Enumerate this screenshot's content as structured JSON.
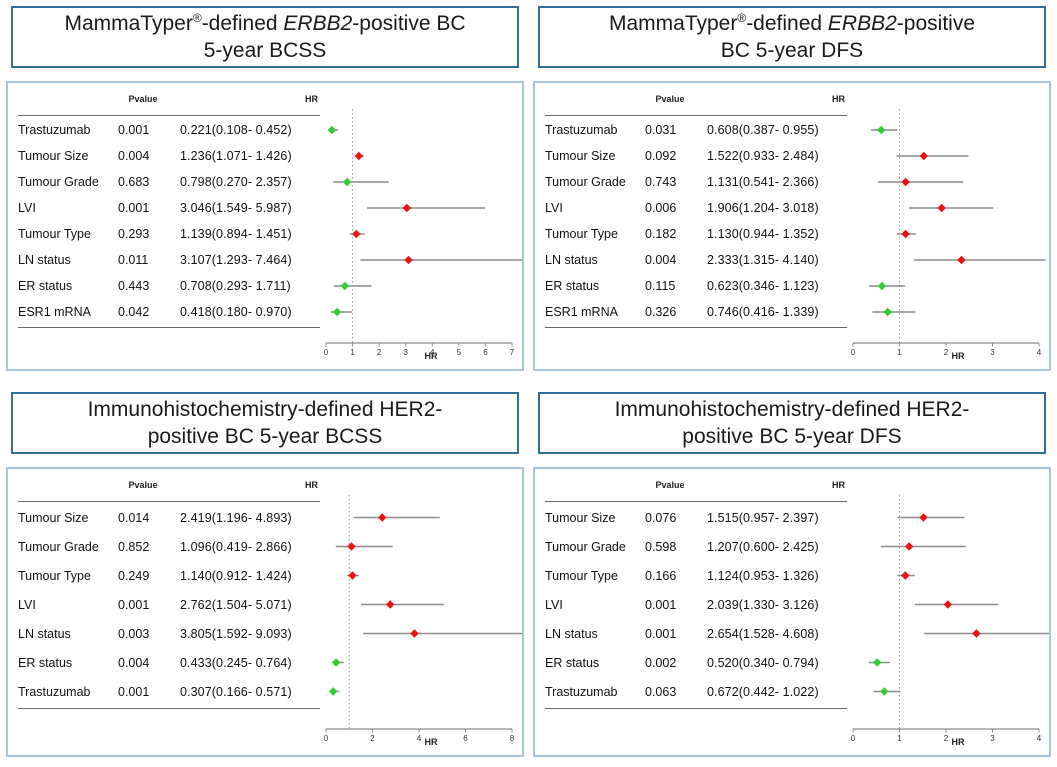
{
  "colors": {
    "red_marker": "#ee1111",
    "green_marker": "#33cc33",
    "error_bar": "#8c8c8c",
    "reference_line": "#999999",
    "axis_line": "#8c8c8c",
    "tick_text": "#333333",
    "title_border": "#2f6e96",
    "panel_border": "#a9c6da"
  },
  "table_headers": {
    "pvalue": "Pvalue",
    "hr": "HR"
  },
  "chart_data": [
    {
      "type": "scatter",
      "subtype": "forest-plot",
      "title": "MammaTyper®-defined ERBB2-positive BC 5-year BCSS",
      "title_segments": [
        {
          "text": "MammaTyper"
        },
        {
          "text": "®",
          "sup": true
        },
        {
          "text": "-defined "
        },
        {
          "text": "ERBB2",
          "italic": true
        },
        {
          "text": "-positive BC"
        },
        {
          "break": true
        },
        {
          "text": "5-year BCSS"
        }
      ],
      "xlabel": "HR",
      "xlim": [
        0,
        7
      ],
      "xticks": [
        0,
        1,
        2,
        3,
        4,
        5,
        6,
        7
      ],
      "refline": 1,
      "rows": [
        {
          "label": "Trastuzumab",
          "pvalue": "0.001",
          "hr_ci": "0.221(0.108- 0.452)",
          "hr": 0.221,
          "ci_low": 0.108,
          "ci_high": 0.452
        },
        {
          "label": "Tumour Size",
          "pvalue": "0.004",
          "hr_ci": "1.236(1.071- 1.426)",
          "hr": 1.236,
          "ci_low": 1.071,
          "ci_high": 1.426
        },
        {
          "label": "Tumour Grade",
          "pvalue": "0.683",
          "hr_ci": "0.798(0.270- 2.357)",
          "hr": 0.798,
          "ci_low": 0.27,
          "ci_high": 2.357
        },
        {
          "label": "LVI",
          "pvalue": "0.001",
          "hr_ci": "3.046(1.549- 5.987)",
          "hr": 3.046,
          "ci_low": 1.549,
          "ci_high": 5.987
        },
        {
          "label": "Tumour Type",
          "pvalue": "0.293",
          "hr_ci": "1.139(0.894- 1.451)",
          "hr": 1.139,
          "ci_low": 0.894,
          "ci_high": 1.451
        },
        {
          "label": "LN status",
          "pvalue": "0.011",
          "hr_ci": "3.107(1.293- 7.464)",
          "hr": 3.107,
          "ci_low": 1.293,
          "ci_high": 7.464
        },
        {
          "label": "ER status",
          "pvalue": "0.443",
          "hr_ci": "0.708(0.293- 1.711)",
          "hr": 0.708,
          "ci_low": 0.293,
          "ci_high": 1.711
        },
        {
          "label": "ESR1 mRNA",
          "pvalue": "0.042",
          "hr_ci": "0.418(0.180- 0.970)",
          "hr": 0.418,
          "ci_low": 0.18,
          "ci_high": 0.97
        }
      ]
    },
    {
      "type": "scatter",
      "subtype": "forest-plot",
      "title": "MammaTyper®-defined ERBB2-positive BC 5-year DFS",
      "title_segments": [
        {
          "text": "MammaTyper"
        },
        {
          "text": "®",
          "sup": true
        },
        {
          "text": "-defined "
        },
        {
          "text": "ERBB2",
          "italic": true
        },
        {
          "text": "-positive"
        },
        {
          "break": true
        },
        {
          "text": "BC 5-year DFS"
        }
      ],
      "xlabel": "HR",
      "xlim": [
        0,
        4
      ],
      "xticks": [
        0,
        1,
        2,
        3,
        4
      ],
      "refline": 1,
      "rows": [
        {
          "label": "Trastuzumab",
          "pvalue": "0.031",
          "hr_ci": "0.608(0.387- 0.955)",
          "hr": 0.608,
          "ci_low": 0.387,
          "ci_high": 0.955
        },
        {
          "label": "Tumour Size",
          "pvalue": "0.092",
          "hr_ci": "1.522(0.933- 2.484)",
          "hr": 1.522,
          "ci_low": 0.933,
          "ci_high": 2.484
        },
        {
          "label": "Tumour Grade",
          "pvalue": "0.743",
          "hr_ci": "1.131(0.541- 2.366)",
          "hr": 1.131,
          "ci_low": 0.541,
          "ci_high": 2.366
        },
        {
          "label": "LVI",
          "pvalue": "0.006",
          "hr_ci": "1.906(1.204- 3.018)",
          "hr": 1.906,
          "ci_low": 1.204,
          "ci_high": 3.018
        },
        {
          "label": "Tumour Type",
          "pvalue": "0.182",
          "hr_ci": "1.130(0.944- 1.352)",
          "hr": 1.13,
          "ci_low": 0.944,
          "ci_high": 1.352
        },
        {
          "label": "LN status",
          "pvalue": "0.004",
          "hr_ci": "2.333(1.315- 4.140)",
          "hr": 2.333,
          "ci_low": 1.315,
          "ci_high": 4.14
        },
        {
          "label": "ER status",
          "pvalue": "0.115",
          "hr_ci": "0.623(0.346- 1.123)",
          "hr": 0.623,
          "ci_low": 0.346,
          "ci_high": 1.123
        },
        {
          "label": "ESR1 mRNA",
          "pvalue": "0.326",
          "hr_ci": "0.746(0.416- 1.339)",
          "hr": 0.746,
          "ci_low": 0.416,
          "ci_high": 1.339
        }
      ]
    },
    {
      "type": "scatter",
      "subtype": "forest-plot",
      "title": "Immunohistochemistry-defined HER2-positive BC 5-year BCSS",
      "title_segments": [
        {
          "text": "Immunohistochemistry-defined HER2-"
        },
        {
          "break": true
        },
        {
          "text": "positive BC 5-year BCSS"
        }
      ],
      "xlabel": "HR",
      "xlim": [
        0,
        8
      ],
      "xticks": [
        0,
        2,
        4,
        6,
        8
      ],
      "refline": 1,
      "rows": [
        {
          "label": "Tumour Size",
          "pvalue": "0.014",
          "hr_ci": "2.419(1.196- 4.893)",
          "hr": 2.419,
          "ci_low": 1.196,
          "ci_high": 4.893
        },
        {
          "label": "Tumour Grade",
          "pvalue": "0.852",
          "hr_ci": "1.096(0.419- 2.866)",
          "hr": 1.096,
          "ci_low": 0.419,
          "ci_high": 2.866
        },
        {
          "label": "Tumour Type",
          "pvalue": "0.249",
          "hr_ci": "1.140(0.912- 1.424)",
          "hr": 1.14,
          "ci_low": 0.912,
          "ci_high": 1.424
        },
        {
          "label": "LVI",
          "pvalue": "0.001",
          "hr_ci": "2.762(1.504- 5.071)",
          "hr": 2.762,
          "ci_low": 1.504,
          "ci_high": 5.071
        },
        {
          "label": "LN status",
          "pvalue": "0.003",
          "hr_ci": "3.805(1.592- 9.093)",
          "hr": 3.805,
          "ci_low": 1.592,
          "ci_high": 9.093
        },
        {
          "label": "ER status",
          "pvalue": "0.004",
          "hr_ci": "0.433(0.245- 0.764)",
          "hr": 0.433,
          "ci_low": 0.245,
          "ci_high": 0.764
        },
        {
          "label": "Trastuzumab",
          "pvalue": "0.001",
          "hr_ci": "0.307(0.166- 0.571)",
          "hr": 0.307,
          "ci_low": 0.166,
          "ci_high": 0.571
        }
      ]
    },
    {
      "type": "scatter",
      "subtype": "forest-plot",
      "title": "Immunohistochemistry-defined HER2-positive BC 5-year DFS",
      "title_segments": [
        {
          "text": "Immunohistochemistry-defined HER2-"
        },
        {
          "break": true
        },
        {
          "text": "positive BC 5-year DFS"
        }
      ],
      "xlabel": "HR",
      "xlim": [
        0,
        4
      ],
      "xticks": [
        0,
        1,
        2,
        3,
        4
      ],
      "refline": 1,
      "rows": [
        {
          "label": "Tumour Size",
          "pvalue": "0.076",
          "hr_ci": "1.515(0.957- 2.397)",
          "hr": 1.515,
          "ci_low": 0.957,
          "ci_high": 2.397
        },
        {
          "label": "Tumour Grade",
          "pvalue": "0.598",
          "hr_ci": "1.207(0.600- 2.425)",
          "hr": 1.207,
          "ci_low": 0.6,
          "ci_high": 2.425
        },
        {
          "label": "Tumour Type",
          "pvalue": "0.166",
          "hr_ci": "1.124(0.953- 1.326)",
          "hr": 1.124,
          "ci_low": 0.953,
          "ci_high": 1.326
        },
        {
          "label": "LVI",
          "pvalue": "0.001",
          "hr_ci": "2.039(1.330- 3.126)",
          "hr": 2.039,
          "ci_low": 1.33,
          "ci_high": 3.126
        },
        {
          "label": "LN status",
          "pvalue": "0.001",
          "hr_ci": "2.654(1.528- 4.608)",
          "hr": 2.654,
          "ci_low": 1.528,
          "ci_high": 4.608
        },
        {
          "label": "ER status",
          "pvalue": "0.002",
          "hr_ci": "0.520(0.340- 0.794)",
          "hr": 0.52,
          "ci_low": 0.34,
          "ci_high": 0.794
        },
        {
          "label": "Trastuzumab",
          "pvalue": "0.063",
          "hr_ci": "0.672(0.442- 1.022)",
          "hr": 0.672,
          "ci_low": 0.442,
          "ci_high": 1.022
        }
      ]
    }
  ]
}
